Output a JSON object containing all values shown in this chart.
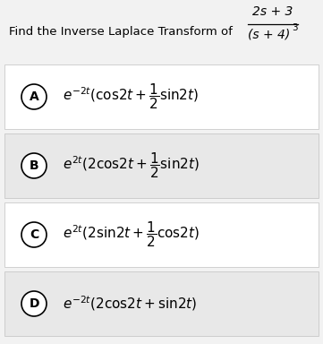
{
  "title_text": "Find the Inverse Laplace Transform of",
  "fraction_num": "2s + 3",
  "fraction_den": "(s + 4)",
  "fraction_den_exp": "3",
  "bg_color": "#f2f2f2",
  "white_bg": "#ffffff",
  "option_box_light": "#e8e8e8",
  "option_box_dark": "#d8d8d8",
  "options": [
    {
      "label": "A",
      "math_line1": "$e^{-2t}(\\mathrm{cos}2t+\\dfrac{1}{2}\\mathrm{sin}2t)$"
    },
    {
      "label": "B",
      "math_line1": "$e^{2t}(2\\mathrm{cos}2t+\\dfrac{1}{2}\\mathrm{sin}2t)$"
    },
    {
      "label": "C",
      "math_line1": "$e^{2t}(2\\mathrm{sin}2t+\\dfrac{1}{2}\\mathrm{cos}2t)$"
    },
    {
      "label": "D",
      "math_line1": "$e^{-2t}(2\\mathrm{cos}2t+\\mathrm{sin}2t)$"
    }
  ]
}
